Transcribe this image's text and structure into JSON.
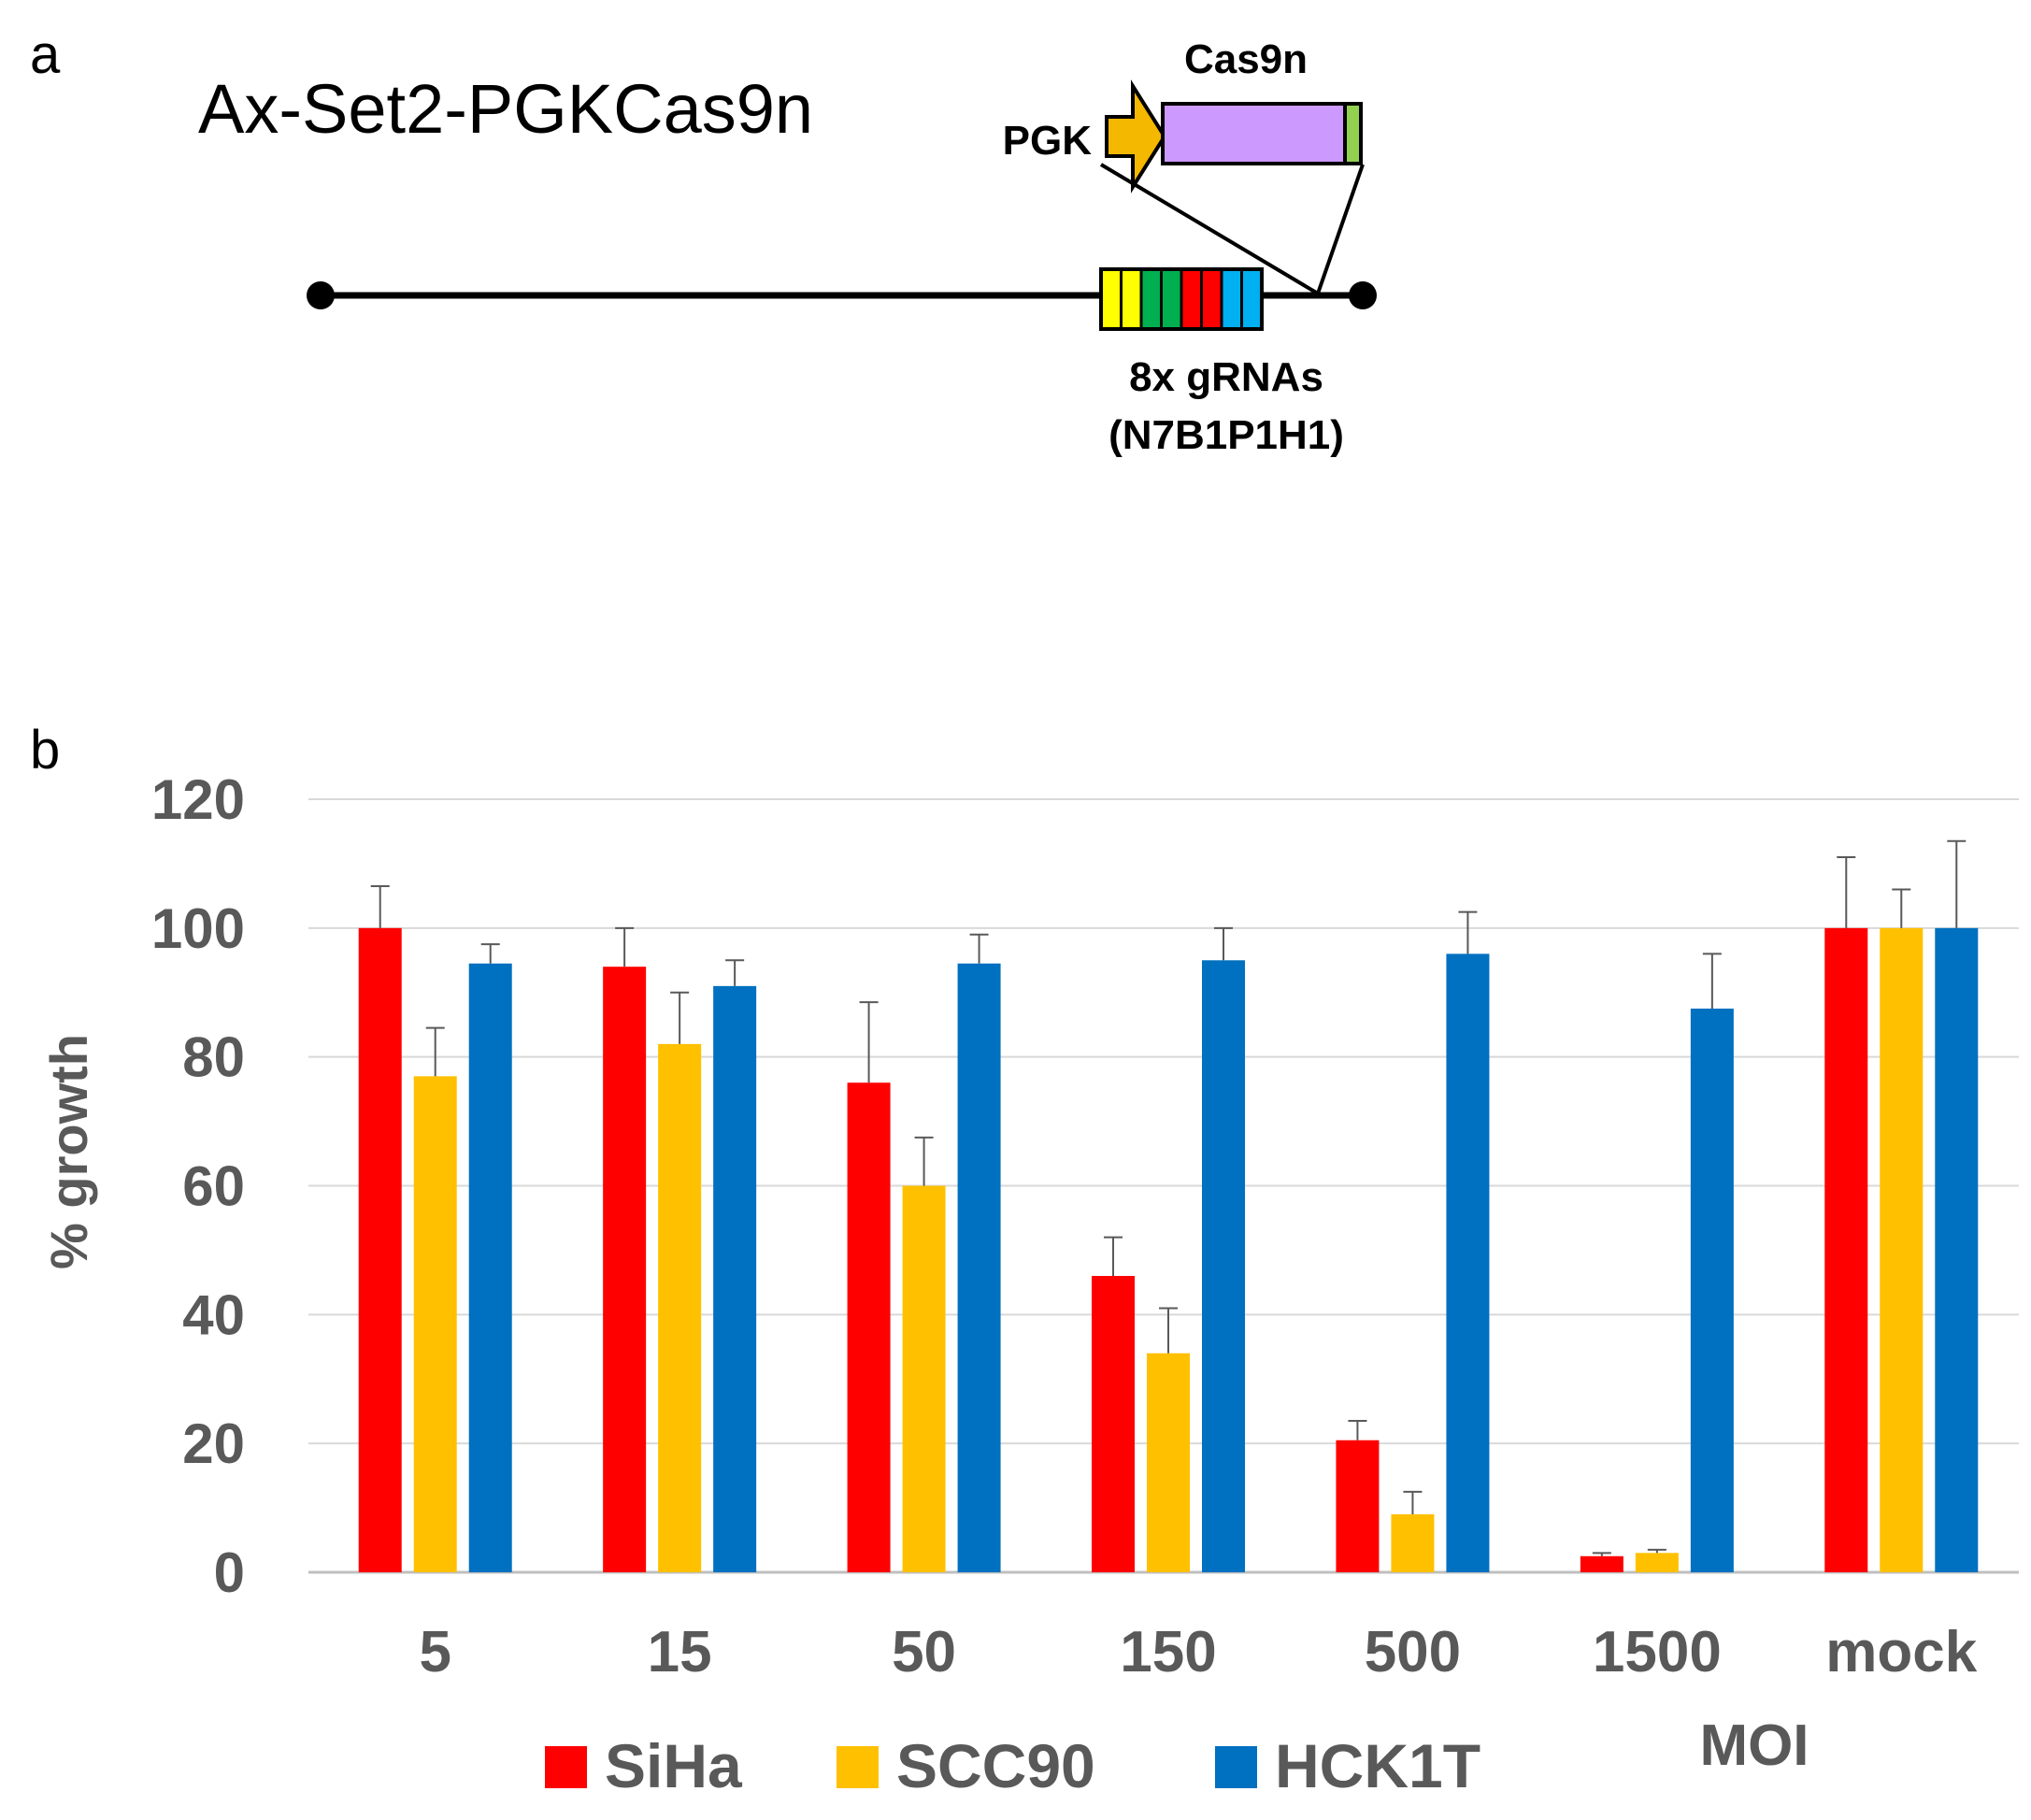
{
  "panel_a": {
    "letter": "a",
    "construct_name": "Ax-Set2-PGKCas9n",
    "promoter_label": "PGK",
    "gene_label": "Cas9n",
    "insert_label_line1": "8x gRNAs",
    "insert_label_line2": "(N7B1P1H1)",
    "colors": {
      "promoter": "#F5B800",
      "cas9n": "#CC99FF",
      "nls": "#92D050",
      "grna": [
        "#FFFF00",
        "#FFFF00",
        "#00B050",
        "#00B050",
        "#FF0000",
        "#FF0000",
        "#00B0F0",
        "#00B0F0"
      ]
    }
  },
  "panel_b": {
    "letter": "b"
  },
  "chart_data": {
    "type": "bar",
    "title": "",
    "xlabel": "MOI",
    "ylabel": "% growth",
    "ylim": [
      0,
      120
    ],
    "yticks": [
      0,
      20,
      40,
      60,
      80,
      100,
      120
    ],
    "grid": true,
    "categories": [
      "5",
      "15",
      "50",
      "150",
      "500",
      "1500",
      "mock"
    ],
    "series": [
      {
        "name": "SiHa",
        "color": "#FF0000",
        "values": [
          100,
          94,
          76,
          46,
          20.5,
          2.5,
          100
        ],
        "errors": [
          6.5,
          6,
          12.5,
          6,
          3,
          0.5,
          11
        ]
      },
      {
        "name": "SCC90",
        "color": "#FFC000",
        "values": [
          77,
          82,
          60,
          34,
          9,
          3,
          100
        ],
        "errors": [
          7.5,
          8,
          7.5,
          7,
          3.5,
          0.5,
          6
        ]
      },
      {
        "name": "HCK1T",
        "color": "#0070C0",
        "values": [
          94.5,
          91,
          94.5,
          95,
          96,
          87.5,
          100
        ],
        "errors": [
          3,
          4,
          4.5,
          5,
          6.5,
          8.5,
          13.5
        ]
      }
    ],
    "legend_position": "bottom"
  }
}
